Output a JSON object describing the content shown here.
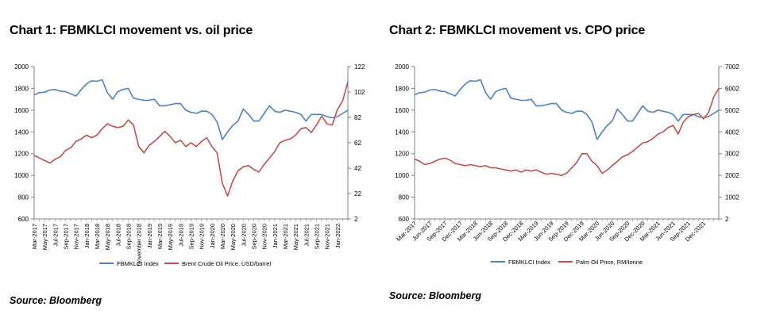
{
  "colors": {
    "series1": "#4F81BD",
    "series2": "#C0504D",
    "axis": "#808080",
    "grid": "none"
  },
  "chart1": {
    "title": "Chart 1: FBMKLCI movement vs. oil price",
    "source": "Source: Bloomberg"
  },
  "chart2": {
    "title": "Chart 2: FBMKLCI movement vs. CPO price",
    "source": "Source: Bloomberg"
  },
  "chart_data": [
    {
      "type": "line",
      "title": "Chart 1: FBMKLCI movement vs. oil price",
      "grid": false,
      "legend": "bottom",
      "x_start": "2017-03",
      "x_end": "2022-03",
      "x": [
        "Mar-2017",
        "Apr-2017",
        "May-2017",
        "Jun-2017",
        "Jul-2017",
        "Aug-2017",
        "Sep-2017",
        "Oct-2017",
        "Nov-2017",
        "Dec-2017",
        "Jan-2018",
        "Feb-2018",
        "Mar-2018",
        "Apr-2018",
        "May-2018",
        "Jun-2018",
        "Jul-2018",
        "Aug-2018",
        "Sep-2018",
        "Oct-2018",
        "Nov-2018",
        "Dec-2018",
        "Jan-2019",
        "Feb-2019",
        "Mar-2019",
        "Apr-2019",
        "May-2019",
        "Jun-2019",
        "Jul-2019",
        "Aug-2019",
        "Sep-2019",
        "Oct-2019",
        "Nov-2019",
        "Dec-2019",
        "Jan-2020",
        "Feb-2020",
        "Mar-2020",
        "Apr-2020",
        "May-2020",
        "Jun-2020",
        "Jul-2020",
        "Aug-2020",
        "Sep-2020",
        "Oct-2020",
        "Nov-2020",
        "Dec-2020",
        "Jan-2021",
        "Feb-2021",
        "Mar-2021",
        "Apr-2021",
        "May-2021",
        "Jun-2021",
        "Jul-2021",
        "Aug-2021",
        "Sep-2021",
        "Oct-2021",
        "Nov-2021",
        "Dec-2021",
        "Jan-2022",
        "Feb-2022",
        "Mar-2022"
      ],
      "x_tick_labels": [
        "Mar-2017",
        "May-2017",
        "Jul-2017",
        "Sep-2017",
        "Nov-2017",
        "Jan-2018",
        "Mar-2018",
        "May-2018",
        "Jul-2018",
        "Sep-2018",
        "November 2018",
        "Jan-2019",
        "Mar-2019",
        "May-2019",
        "Jul-2019",
        "Sep-2019",
        "Nov-2019",
        "Jan-2020",
        "Mar-2020",
        "May-2020",
        "Jul-2020",
        "Sep-2020",
        "Nov-2020",
        "Jan-2021",
        "Mar-2021",
        "May-2021",
        "Jul-2021",
        "Sep-2021",
        "Nov-2021",
        "Jan-2022"
      ],
      "y_left": {
        "min": 600,
        "max": 2000,
        "ticks": [
          600,
          800,
          1000,
          1200,
          1400,
          1600,
          1800,
          2000
        ]
      },
      "y_right": {
        "min": 2,
        "max": 122,
        "ticks": [
          2,
          22,
          42,
          62,
          82,
          102,
          122
        ]
      },
      "series": [
        {
          "name": "FBMKLCI Index",
          "axis": "left",
          "color": "#4F81BD",
          "values": [
            1740,
            1760,
            1765,
            1785,
            1790,
            1775,
            1770,
            1750,
            1730,
            1790,
            1840,
            1870,
            1865,
            1880,
            1760,
            1700,
            1770,
            1790,
            1800,
            1710,
            1700,
            1690,
            1690,
            1700,
            1640,
            1640,
            1650,
            1660,
            1660,
            1600,
            1580,
            1570,
            1590,
            1590,
            1560,
            1490,
            1330,
            1400,
            1460,
            1500,
            1610,
            1560,
            1500,
            1500,
            1570,
            1640,
            1590,
            1580,
            1600,
            1590,
            1580,
            1560,
            1500,
            1560,
            1560,
            1560,
            1540,
            1530,
            1540,
            1570,
            1600
          ]
        },
        {
          "name": "Brent Crude Oil Price, USD/barrel",
          "axis": "right",
          "color": "#C0504D",
          "values": [
            52,
            50,
            48,
            46,
            49,
            51,
            56,
            58,
            63,
            65,
            68,
            66,
            68,
            73,
            77,
            75,
            74,
            75,
            80,
            76,
            59,
            54,
            60,
            63,
            67,
            71,
            67,
            62,
            64,
            59,
            62,
            59,
            63,
            66,
            59,
            54,
            30,
            20,
            32,
            40,
            43,
            44,
            41,
            39,
            45,
            50,
            55,
            62,
            64,
            65,
            68,
            73,
            74,
            70,
            76,
            83,
            77,
            76,
            88,
            95,
            110
          ]
        }
      ]
    },
    {
      "type": "line",
      "title": "Chart 2: FBMKLCI movement vs. CPO price",
      "grid": false,
      "legend": "bottom",
      "x_start": "2017-03",
      "x_end": "2022-03",
      "x": [
        "Mar-2017",
        "Apr-2017",
        "May-2017",
        "Jun-2017",
        "Jul-2017",
        "Aug-2017",
        "Sep-2017",
        "Oct-2017",
        "Nov-2017",
        "Dec-2017",
        "Jan-2018",
        "Feb-2018",
        "Mar-2018",
        "Apr-2018",
        "May-2018",
        "Jun-2018",
        "Jul-2018",
        "Aug-2018",
        "Sep-2018",
        "Oct-2018",
        "Nov-2018",
        "Dec-2018",
        "Jan-2019",
        "Feb-2019",
        "Mar-2019",
        "Apr-2019",
        "May-2019",
        "Jun-2019",
        "Jul-2019",
        "Aug-2019",
        "Sep-2019",
        "Oct-2019",
        "Nov-2019",
        "Dec-2019",
        "Jan-2020",
        "Feb-2020",
        "Mar-2020",
        "Apr-2020",
        "May-2020",
        "Jun-2020",
        "Jul-2020",
        "Aug-2020",
        "Sep-2020",
        "Oct-2020",
        "Nov-2020",
        "Dec-2020",
        "Jan-2021",
        "Feb-2021",
        "Mar-2021",
        "Apr-2021",
        "May-2021",
        "Jun-2021",
        "Jul-2021",
        "Aug-2021",
        "Sep-2021",
        "Oct-2021",
        "Nov-2021",
        "Dec-2021",
        "Jan-2022",
        "Feb-2022",
        "Mar-2022"
      ],
      "x_tick_labels": [
        "Mar-2017",
        "Jun-2017",
        "Sep-2017",
        "Dec-2017",
        "Mar-2018",
        "Jun-2018",
        "Sep-2018",
        "Dec-2018",
        "Mar-2019",
        "Jun-2019",
        "Sep-2019",
        "Dec-2019",
        "Mar-2020",
        "Jun-2020",
        "Sep-2020",
        "Dec-2020",
        "Mar-2021",
        "Jun-2021",
        "Sep-2021",
        "Dec-2021"
      ],
      "y_left": {
        "min": 600,
        "max": 2000,
        "ticks": [
          600,
          800,
          1000,
          1200,
          1400,
          1600,
          1800,
          2000
        ]
      },
      "y_right": {
        "min": 2,
        "max": 7002,
        "ticks": [
          2,
          1002,
          2002,
          3002,
          4002,
          5002,
          6002,
          7002
        ]
      },
      "series": [
        {
          "name": "FBMKLCI Index",
          "axis": "left",
          "color": "#4F81BD",
          "values": [
            1740,
            1760,
            1765,
            1785,
            1790,
            1775,
            1770,
            1750,
            1730,
            1790,
            1840,
            1870,
            1865,
            1880,
            1760,
            1700,
            1770,
            1790,
            1800,
            1710,
            1700,
            1690,
            1690,
            1700,
            1640,
            1640,
            1650,
            1660,
            1660,
            1600,
            1580,
            1570,
            1590,
            1590,
            1560,
            1490,
            1330,
            1400,
            1460,
            1500,
            1610,
            1560,
            1500,
            1500,
            1570,
            1640,
            1590,
            1580,
            1600,
            1590,
            1580,
            1560,
            1500,
            1560,
            1560,
            1560,
            1540,
            1530,
            1540,
            1570,
            1600
          ]
        },
        {
          "name": "Palm Oil Price, RM/tonne",
          "axis": "right",
          "color": "#C0504D",
          "values": [
            2750,
            2650,
            2500,
            2550,
            2650,
            2750,
            2800,
            2700,
            2550,
            2500,
            2450,
            2500,
            2450,
            2400,
            2450,
            2350,
            2350,
            2300,
            2250,
            2200,
            2250,
            2150,
            2250,
            2200,
            2250,
            2150,
            2050,
            2100,
            2050,
            2000,
            2100,
            2350,
            2600,
            3000,
            3000,
            2650,
            2450,
            2100,
            2250,
            2450,
            2650,
            2850,
            2950,
            3100,
            3300,
            3500,
            3550,
            3700,
            3900,
            4000,
            4200,
            4300,
            3900,
            4450,
            4700,
            4800,
            4850,
            4600,
            4900,
            5600,
            6000
          ]
        }
      ]
    }
  ]
}
